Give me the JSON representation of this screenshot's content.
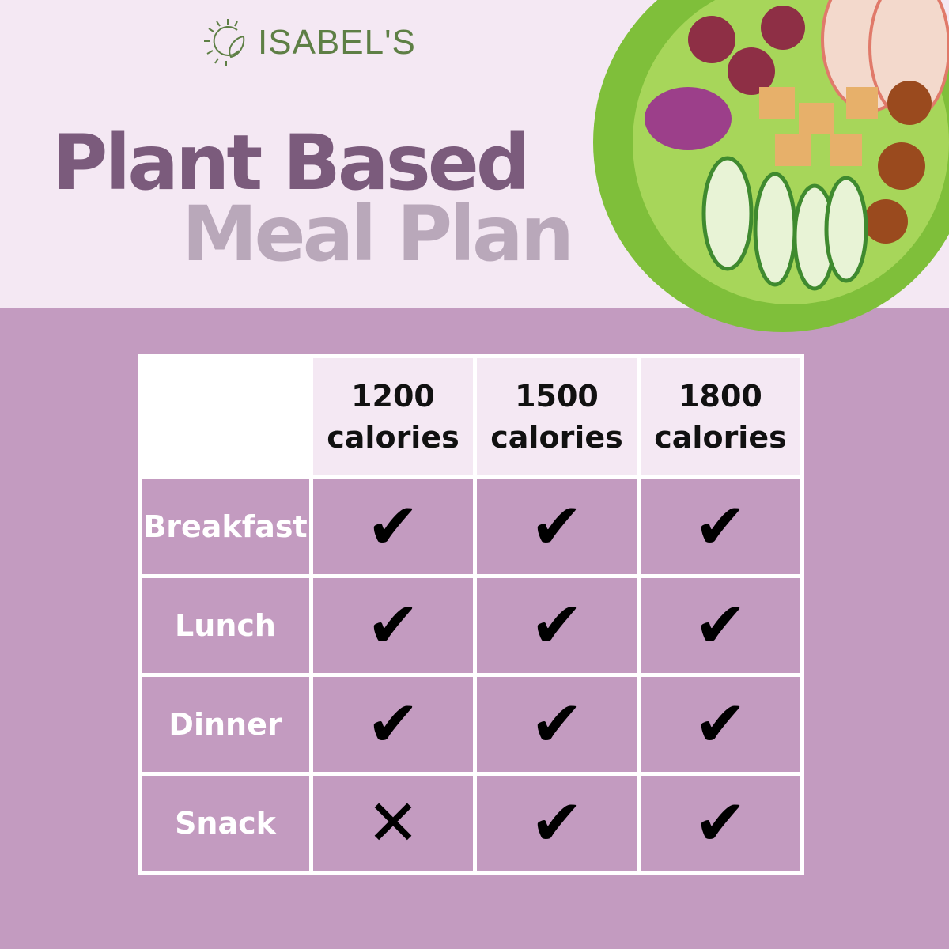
{
  "brand": {
    "name": "ISABEL'S",
    "logo_icon": "sun-leaf-icon"
  },
  "title": {
    "line1": "Plant Based",
    "line2": "Meal Plan"
  },
  "colors": {
    "top_bg": "#f4e8f3",
    "bottom_bg": "#c39bc0",
    "title_dark": "#7b5b7c",
    "title_light": "#b9a8ba",
    "logo_green": "#5e7f45"
  },
  "table": {
    "columns": [
      {
        "number": "1200",
        "unit": "calories"
      },
      {
        "number": "1500",
        "unit": "calories"
      },
      {
        "number": "1800",
        "unit": "calories"
      }
    ],
    "rows": [
      {
        "label": "Breakfast",
        "cells": [
          "✔",
          "✔",
          "✔"
        ]
      },
      {
        "label": "Lunch",
        "cells": [
          "✔",
          "✔",
          "✔"
        ]
      },
      {
        "label": "Dinner",
        "cells": [
          "✔",
          "✔",
          "✔"
        ]
      },
      {
        "label": "Snack",
        "cells": [
          "✕",
          "✔",
          "✔"
        ]
      }
    ]
  }
}
